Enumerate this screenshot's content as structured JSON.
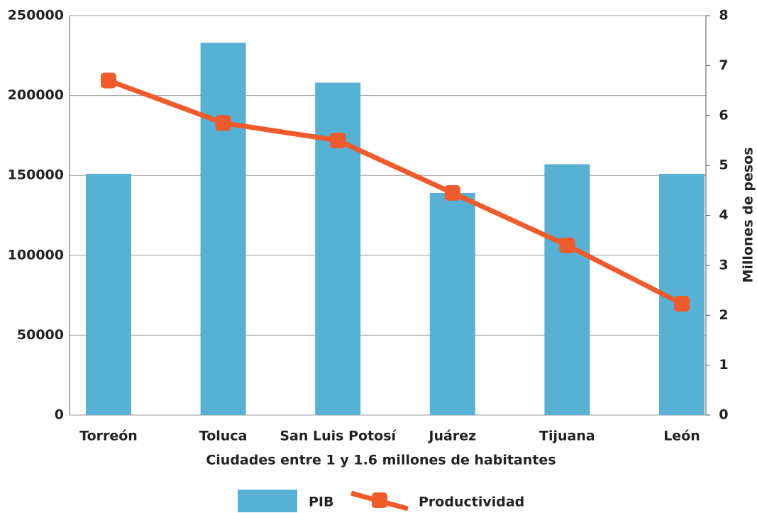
{
  "chart_data": {
    "type": "bar-line",
    "categories": [
      "Torreón",
      "Toluca",
      "San Luis Potosí",
      "Juárez",
      "Tijuana",
      "León"
    ],
    "series": [
      {
        "name": "PIB",
        "type": "bar",
        "color": "#56b1d5",
        "values": [
          151000,
          233000,
          208000,
          139000,
          157000,
          151000
        ]
      },
      {
        "name": "Productividad",
        "type": "line",
        "axis": "y2",
        "color": "#f15a2a",
        "values": [
          6.7,
          5.85,
          5.5,
          4.45,
          3.4,
          2.23
        ]
      }
    ],
    "xlabel": "Ciudades entre 1 y 1.6 millones de habitantes",
    "y2label": "Millones de pesos",
    "ylim": [
      0,
      250000
    ],
    "yticks": [
      0,
      50000,
      100000,
      150000,
      200000,
      250000
    ],
    "y2lim": [
      0,
      8
    ],
    "y2ticks": [
      0,
      1,
      2,
      3,
      4,
      5,
      6,
      7,
      8
    ],
    "grid": true,
    "legend": "bottom"
  }
}
